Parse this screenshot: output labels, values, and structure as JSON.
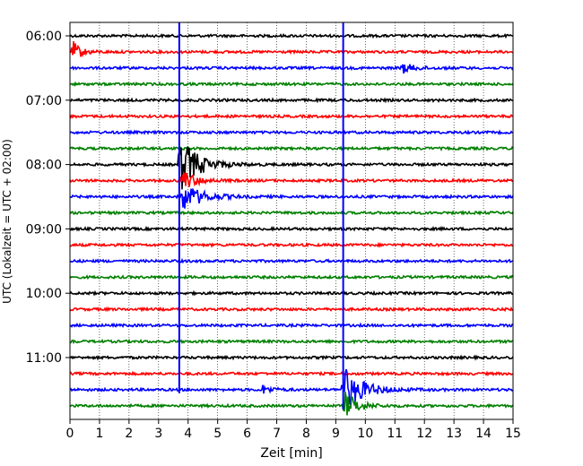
{
  "chart_data": {
    "type": "line",
    "title": "",
    "xlabel": "Zeit  [min]",
    "ylabel": "UTC (Lokalzeit = UTC + 02:00)",
    "xlim": [
      0,
      15
    ],
    "x_ticks": [
      "0",
      "1",
      "2",
      "3",
      "4",
      "5",
      "6",
      "7",
      "8",
      "9",
      "10",
      "11",
      "12",
      "13",
      "14",
      "15"
    ],
    "y_ticks": [
      "06:00",
      "07:00",
      "08:00",
      "09:00",
      "10:00",
      "11:00"
    ],
    "y_tick_hours": [
      6,
      7,
      8,
      9,
      10,
      11
    ],
    "trace_start_hour": 6.0,
    "trace_interval_hours": 0.25,
    "trace_count": 24,
    "colors": [
      "#000000",
      "#ff0000",
      "#0000ff",
      "#008000"
    ],
    "grid": "vertical dotted",
    "events": [
      {
        "trace": 1,
        "x": 0.1,
        "amplitude": 12,
        "decay": 0.25
      },
      {
        "trace": 2,
        "x": 11.2,
        "amplitude": 6,
        "decay": 0.4
      },
      {
        "trace": 8,
        "x": 3.7,
        "amplitude": 34,
        "decay": 0.55
      },
      {
        "trace": 9,
        "x": 3.75,
        "amplitude": 14,
        "decay": 0.4
      },
      {
        "trace": 10,
        "x": 3.8,
        "amplitude": 16,
        "decay": 0.6
      },
      {
        "trace": 22,
        "x": 9.25,
        "amplitude": 26,
        "decay": 0.6
      },
      {
        "trace": 23,
        "x": 9.3,
        "amplitude": 16,
        "decay": 0.4
      },
      {
        "trace": 22,
        "x": 6.5,
        "amplitude": 5,
        "decay": 0.3
      }
    ],
    "spikes": [
      {
        "x": 3.7,
        "from_trace": 0,
        "to_trace": 22
      },
      {
        "x": 9.25,
        "from_trace": 0,
        "to_trace": 23
      }
    ]
  }
}
